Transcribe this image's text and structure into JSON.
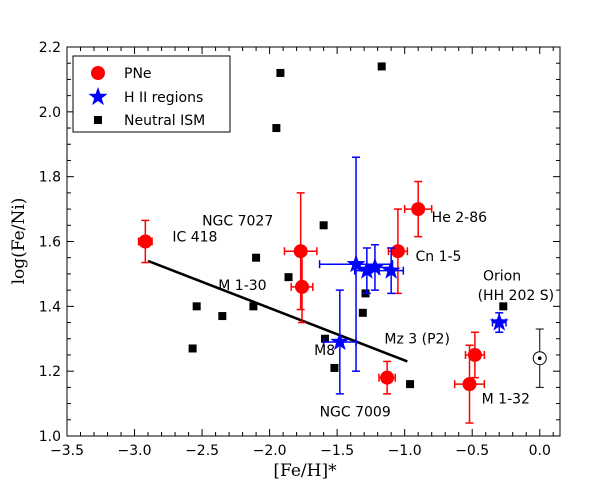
{
  "chart_data": {
    "type": "scatter",
    "xlabel": "[Fe/H]*",
    "ylabel": "log(Fe/Ni)",
    "xlim": [
      -3.5,
      0.15
    ],
    "ylim": [
      1.0,
      2.2
    ],
    "xticks": [
      -3.5,
      -3.0,
      -2.5,
      -2.0,
      -1.5,
      -1.0,
      -0.5,
      0.0
    ],
    "yticks": [
      1.0,
      1.2,
      1.4,
      1.6,
      1.8,
      2.0,
      2.2
    ],
    "xtick_labels": [
      "−3.5",
      "−3.0",
      "−2.5",
      "−2.0",
      "−1.5",
      "−1.0",
      "−0.5",
      "0.0"
    ],
    "ytick_labels": [
      "1.0",
      "1.2",
      "1.4",
      "1.6",
      "1.8",
      "2.0",
      "2.2"
    ],
    "grid": false,
    "legend_position": "top-left",
    "series": [
      {
        "name": "PNe",
        "marker": "circle",
        "color": "#ff0000",
        "points": [
          {
            "x": -2.92,
            "y": 1.6,
            "xerr": 0.05,
            "yerr": 0.065
          },
          {
            "x": -1.77,
            "y": 1.57,
            "xerr": 0.12,
            "yerr": 0.18
          },
          {
            "x": -1.76,
            "y": 1.46,
            "xerr": 0.08,
            "yerr": 0.11
          },
          {
            "x": -1.05,
            "y": 1.57,
            "xerr": 0.07,
            "yerr": 0.13
          },
          {
            "x": -0.9,
            "y": 1.7,
            "xerr": 0.1,
            "yerr": 0.085
          },
          {
            "x": -1.13,
            "y": 1.18,
            "xerr": 0.06,
            "yerr": 0.05
          },
          {
            "x": -0.48,
            "y": 1.25,
            "xerr": 0.07,
            "yerr": 0.07
          },
          {
            "x": -0.52,
            "y": 1.16,
            "xerr": 0.11,
            "yerr": 0.12
          }
        ]
      },
      {
        "name": "H II regions",
        "marker": "star",
        "color": "#0000ff",
        "points": [
          {
            "x": -1.36,
            "y": 1.53,
            "xerr": 0.27,
            "yerr": 0.33
          },
          {
            "x": -1.28,
            "y": 1.51,
            "xerr": 0.09,
            "yerr": 0.07
          },
          {
            "x": -1.22,
            "y": 1.52,
            "xerr": 0.11,
            "yerr": 0.07
          },
          {
            "x": -1.1,
            "y": 1.51,
            "xerr": 0.09,
            "yerr": 0.07
          },
          {
            "x": -1.48,
            "y": 1.29,
            "xerr": 0.12,
            "yerr": 0.16
          },
          {
            "x": -0.3,
            "y": 1.35,
            "xerr": 0.05,
            "yerr": 0.03
          }
        ]
      },
      {
        "name": "Neutral ISM",
        "marker": "square",
        "color": "#000000",
        "points": [
          {
            "x": -1.92,
            "y": 2.12
          },
          {
            "x": -1.17,
            "y": 2.14
          },
          {
            "x": -1.95,
            "y": 1.95
          },
          {
            "x": -1.6,
            "y": 1.65
          },
          {
            "x": -2.1,
            "y": 1.55
          },
          {
            "x": -1.86,
            "y": 1.49
          },
          {
            "x": -1.29,
            "y": 1.44
          },
          {
            "x": -2.54,
            "y": 1.4
          },
          {
            "x": -2.12,
            "y": 1.4
          },
          {
            "x": -2.35,
            "y": 1.37
          },
          {
            "x": -1.59,
            "y": 1.3
          },
          {
            "x": -1.31,
            "y": 1.38
          },
          {
            "x": -2.57,
            "y": 1.27
          },
          {
            "x": -1.52,
            "y": 1.21
          },
          {
            "x": -0.96,
            "y": 1.16
          },
          {
            "x": -0.27,
            "y": 1.4
          }
        ]
      }
    ],
    "fit_line": {
      "x": [
        -2.9,
        -0.98
      ],
      "y": [
        1.54,
        1.23
      ]
    },
    "sun": {
      "x": 0.0,
      "y": 1.24,
      "yerr": 0.09
    },
    "annotations": [
      {
        "text": "IC 418",
        "x": -2.72,
        "y": 1.6
      },
      {
        "text": "NGC 7027",
        "x": -2.5,
        "y": 1.65
      },
      {
        "text": "He 2-86",
        "x": -0.8,
        "y": 1.66
      },
      {
        "text": "Cn 1-5",
        "x": -0.92,
        "y": 1.54
      },
      {
        "text": "Orion",
        "x": -0.42,
        "y": 1.48
      },
      {
        "text": "(HH 202 S)",
        "x": -0.46,
        "y": 1.42
      },
      {
        "text": "M 1-30",
        "x": -2.38,
        "y": 1.45
      },
      {
        "text": "Mz 3 (P2)",
        "x": -1.15,
        "y": 1.285
      },
      {
        "text": "M8",
        "x": -1.67,
        "y": 1.25
      },
      {
        "text": "NGC 7009",
        "x": -1.63,
        "y": 1.06
      },
      {
        "text": "M 1-32",
        "x": -0.43,
        "y": 1.1
      }
    ]
  }
}
